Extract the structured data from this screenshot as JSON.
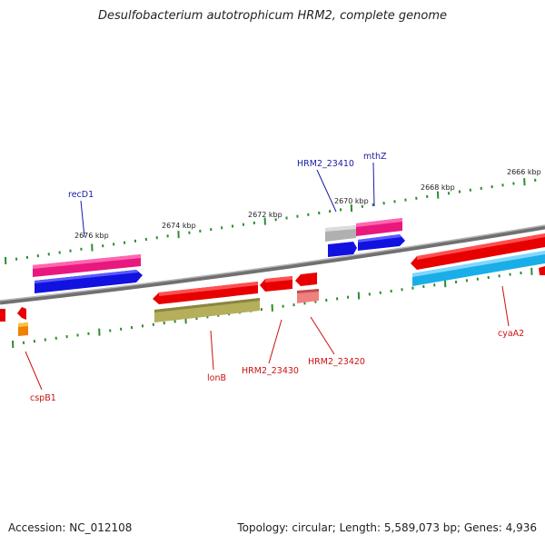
{
  "title": "Desulfobacterium autotrophicum HRM2, complete genome",
  "footer": {
    "accession": "Accession: NC_012108",
    "summary": "Topology: circular; Length: 5,589,073 bp; Genes: 4,936"
  },
  "scale_labels": [
    "2676 kbp",
    "2674 kbp",
    "2672 kbp",
    "2670 kbp",
    "2668 kbp",
    "2666 kbp"
  ],
  "gene_labels_forward": [
    "recD1",
    "HRM2_23410",
    "mthZ"
  ],
  "gene_labels_reverse": [
    "cspB1",
    "lonB",
    "HRM2_23430",
    "HRM2_23420",
    "cyaA2"
  ],
  "colors": {
    "backbone": "#7a7a7a",
    "tick": "#2e8b2e",
    "forward_label": "#1a1aa6",
    "reverse_label": "#cc1111",
    "magenta": "#e8187f",
    "blue": "#1212e0",
    "red": "#e80000",
    "olive": "#b5ae5a",
    "cyan": "#1aaee8",
    "salmon": "#f08080",
    "gray": "#b0b0b0",
    "orange": "#f08000"
  }
}
